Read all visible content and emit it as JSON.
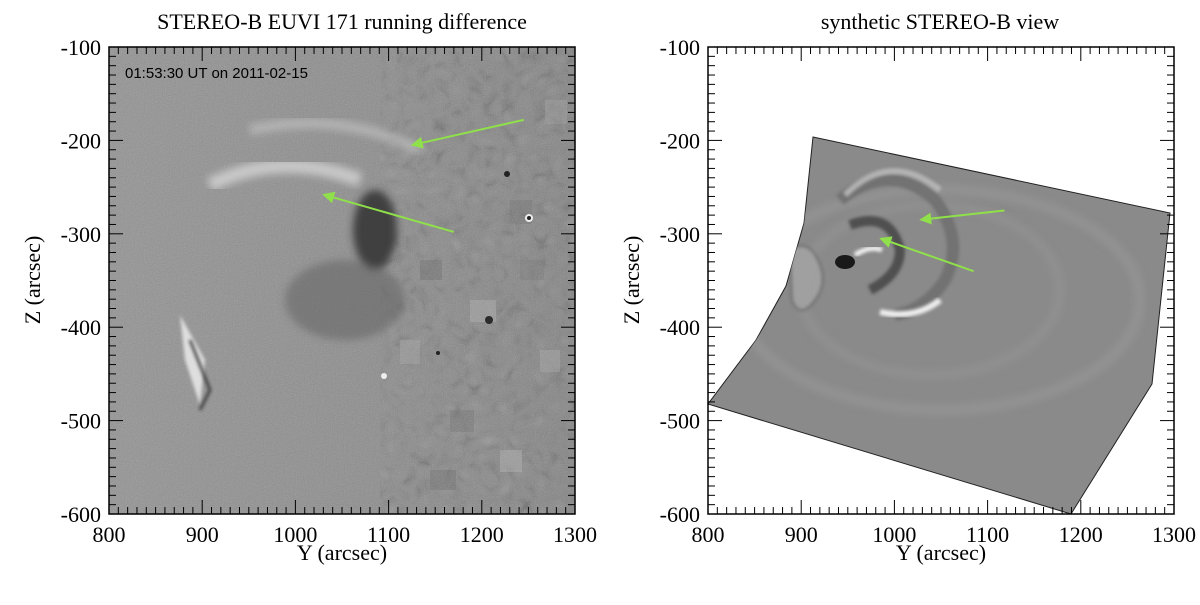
{
  "colors": {
    "arrow": "#8fe04a",
    "frame": "#000000",
    "background_gray": "#8c8c8c",
    "model_gray": "#8a8a8a"
  },
  "chart_data": [
    {
      "type": "image",
      "title": "STEREO-B EUVI 171 running difference",
      "annotation": "01:53:30 UT on 2011-02-15",
      "xlabel": "Y (arcsec)",
      "ylabel": "Z (arcsec)",
      "xlim": [
        800,
        1300
      ],
      "ylim": [
        -600,
        -100
      ],
      "xticks": [
        800,
        900,
        1000,
        1100,
        1200,
        1300
      ],
      "yticks": [
        -100,
        -200,
        -300,
        -400,
        -500,
        -600
      ],
      "xtick_labels": [
        "800",
        "900",
        "1000",
        "1100",
        "1200",
        "1300"
      ],
      "ytick_labels": [
        "-100",
        "-200",
        "-300",
        "-400",
        "-500",
        "-600"
      ],
      "arrows": [
        {
          "from": [
            1245,
            -178
          ],
          "to": [
            1125,
            -205
          ]
        },
        {
          "from": [
            1170,
            -298
          ],
          "to": [
            1030,
            -258
          ]
        }
      ]
    },
    {
      "type": "image",
      "title": "synthetic STEREO-B view",
      "xlabel": "Y (arcsec)",
      "ylabel": "Z (arcsec)",
      "xlim": [
        800,
        1300
      ],
      "ylim": [
        -600,
        -100
      ],
      "xticks": [
        800,
        900,
        1000,
        1100,
        1200,
        1300
      ],
      "yticks": [
        -100,
        -200,
        -300,
        -400,
        -500,
        -600
      ],
      "xtick_labels": [
        "800",
        "900",
        "1000",
        "1100",
        "1200",
        "1300"
      ],
      "ytick_labels": [
        "-100",
        "-200",
        "-300",
        "-400",
        "-500",
        "-600"
      ],
      "arrows": [
        {
          "from": [
            1118,
            -275
          ],
          "to": [
            1028,
            -285
          ]
        },
        {
          "from": [
            1085,
            -340
          ],
          "to": [
            985,
            -305
          ]
        }
      ]
    }
  ]
}
